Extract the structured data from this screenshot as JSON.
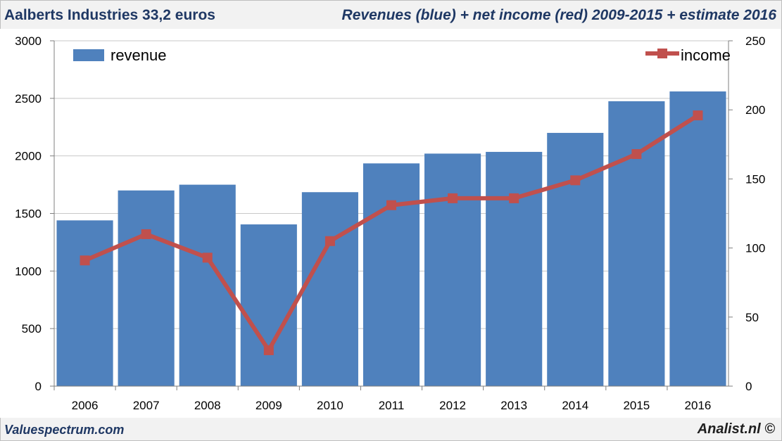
{
  "header": {
    "title_left": "Aalberts Industries 33,2 euros",
    "title_right": "Revenues (blue) + net income (red) 2009-2015 + estimate 2016"
  },
  "footer": {
    "left": "Valuespectrum.com",
    "right": "Analist.nl ©"
  },
  "colors": {
    "bar": "#4f81bd",
    "line": "#c0504d",
    "grid": "#c8c8c8",
    "title": "#1f3864"
  },
  "chart_data": {
    "type": "bar",
    "categories": [
      "2006",
      "2007",
      "2008",
      "2009",
      "2010",
      "2011",
      "2012",
      "2013",
      "2014",
      "2015",
      "2016"
    ],
    "series": [
      {
        "name": "revenue",
        "type": "bar",
        "axis": "left",
        "values": [
          1440,
          1700,
          1750,
          1405,
          1685,
          1935,
          2020,
          2035,
          2200,
          2475,
          2560
        ]
      },
      {
        "name": "income",
        "type": "line",
        "axis": "right",
        "values": [
          91,
          110,
          93,
          26,
          105,
          131,
          136,
          136,
          149,
          168,
          196
        ]
      }
    ],
    "ylim_left": [
      0,
      3000
    ],
    "yticks_left": [
      0,
      500,
      1000,
      1500,
      2000,
      2500,
      3000
    ],
    "ylim_right": [
      0,
      250
    ],
    "yticks_right": [
      0,
      50,
      100,
      150,
      200,
      250
    ],
    "grid": true,
    "legend": [
      "top-left",
      "top-right"
    ]
  }
}
